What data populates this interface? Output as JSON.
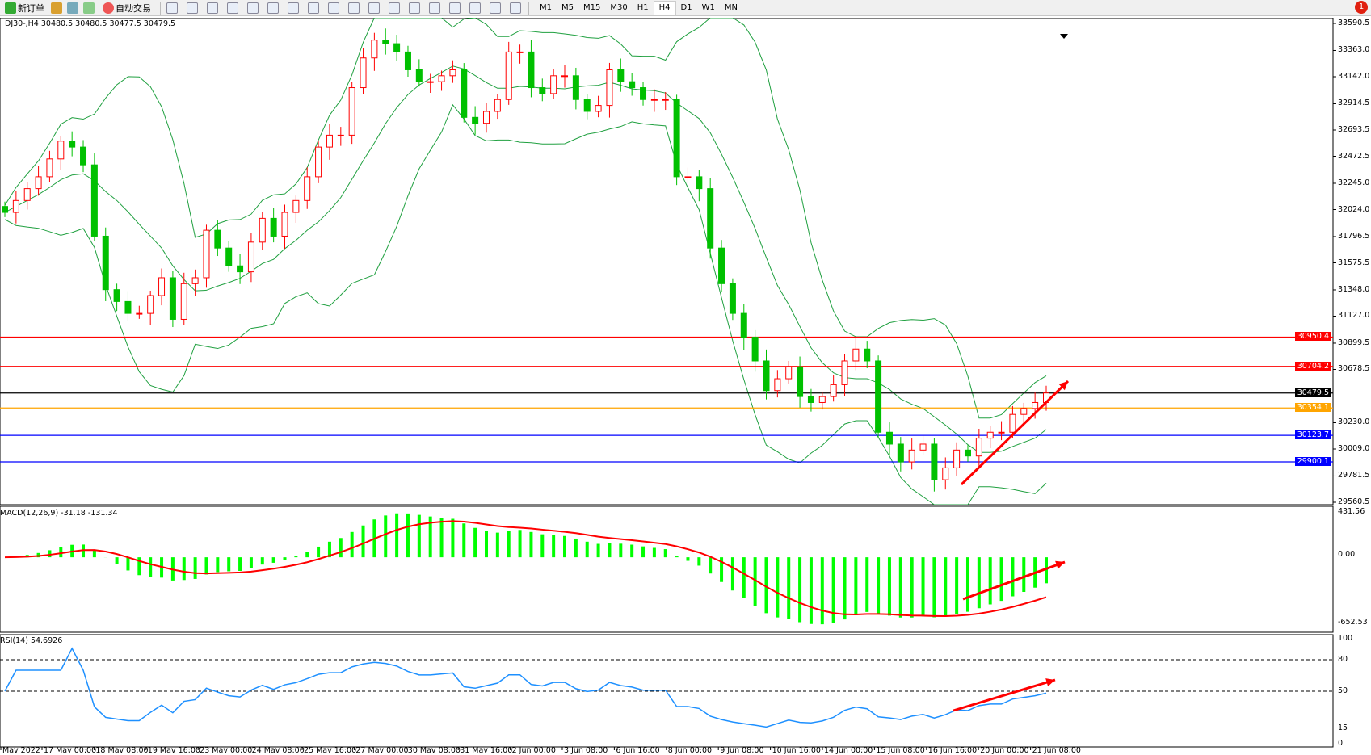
{
  "toolbar": {
    "new_order": "新订单",
    "auto_trading": "自动交易",
    "timeframes": [
      "M1",
      "M5",
      "M15",
      "M30",
      "H1",
      "H4",
      "D1",
      "W1",
      "MN"
    ],
    "active_timeframe": "H4",
    "alert_count": "1",
    "tool_icons": [
      "zoom-in-icon",
      "zoom-out-icon",
      "tile-icon",
      "autoscroll-icon",
      "chart-shift-icon",
      "indicators-icon",
      "periods-icon",
      "templates-icon",
      "cursor-icon",
      "crosshair-icon",
      "vertical-line-icon",
      "horizontal-line-icon",
      "trendline-icon",
      "fibonacci-icon",
      "fibo-fan-icon",
      "text-icon",
      "text-label-icon",
      "arrows-icon"
    ]
  },
  "chart": {
    "header": "DJ30-,H4  30480.5 30480.5 30477.5 30479.5",
    "macd_label": "MACD(12,26,9) -31.18 -131.34",
    "rsi_label": "RSI(14) 54.6926",
    "price_ticks": [
      "33590.5",
      "33363.0",
      "33142.0",
      "32914.5",
      "32693.5",
      "32472.5",
      "32245.0",
      "32024.0",
      "31796.5",
      "31575.5",
      "31348.0",
      "31127.0",
      "30899.5",
      "30678.5",
      "30230.0",
      "30009.0",
      "29781.5",
      "29560.5"
    ],
    "macd_ticks": [
      "431.56",
      "0.00",
      "-652.53"
    ],
    "rsi_ticks": [
      "100",
      "80",
      "50",
      "15",
      "0"
    ],
    "time_labels": [
      "Mav 2022",
      "17 Mav 00:00",
      "18 Mav 08:00",
      "19 Mav 16:00",
      "23 Mav 00:00",
      "24 Mav 08:00",
      "25 Mav 16:00",
      "27 Mav 00:00",
      "30 Mav 08:00",
      "31 Mav 16:00",
      "2 Jun 00:00",
      "3 Jun 08:00",
      "6 Jun 16:00",
      "8 Jun 00:00",
      "9 Jun 08:00",
      "10 Jun 16:00",
      "14 Jun 00:00",
      "15 Jun 08:00",
      "16 Jun 16:00",
      "20 Jun 00:00",
      "21 Jun 08:00"
    ],
    "levels": [
      {
        "price": "30950.4",
        "color": "#ff0000"
      },
      {
        "price": "30704.2",
        "color": "#ff0000"
      },
      {
        "price": "30479.5",
        "color": "#000000"
      },
      {
        "price": "30354.1",
        "color": "#ffa500"
      },
      {
        "price": "30123.7",
        "color": "#0000ff"
      },
      {
        "price": "29900.1",
        "color": "#0000ff"
      }
    ]
  },
  "chart_data": {
    "type": "candlestick",
    "symbol": "DJ30-",
    "timeframe": "H4",
    "price_range": [
      29560.5,
      33590.5
    ],
    "macd_range": [
      -652.53,
      431.56
    ],
    "rsi_range": [
      0,
      100
    ],
    "rsi_levels": [
      80,
      50,
      15
    ],
    "closes": [
      32000,
      32100,
      32200,
      32300,
      32450,
      32600,
      32550,
      32400,
      31800,
      31350,
      31250,
      31150,
      31150,
      31300,
      31450,
      31100,
      31400,
      31450,
      31850,
      31700,
      31550,
      31500,
      31750,
      31950,
      31800,
      32000,
      32100,
      32300,
      32550,
      32650,
      32650,
      33050,
      33300,
      33450,
      33420,
      33350,
      33200,
      33100,
      33100,
      33150,
      33200,
      32800,
      32750,
      32850,
      32950,
      33350,
      33350,
      33050,
      33000,
      33150,
      33150,
      32950,
      32850,
      32900,
      33200,
      33100,
      33050,
      32950,
      32950,
      32950,
      32300,
      32300,
      32200,
      31700,
      31400,
      31150,
      30950,
      30750,
      30500,
      30600,
      30700,
      30450,
      30400,
      30450,
      30550,
      30750,
      30850,
      30750,
      30150,
      30050,
      29900,
      30000,
      30050,
      29750,
      29850,
      30000,
      29950,
      30100,
      30150,
      30150,
      30300,
      30350,
      30400,
      30480
    ],
    "colors": {
      "bull": "#ff0000",
      "bear": "#00c000",
      "bands": "#20a040",
      "macd_hist": "#00ff00",
      "macd_signal": "#ff0000",
      "rsi": "#1e90ff"
    }
  }
}
